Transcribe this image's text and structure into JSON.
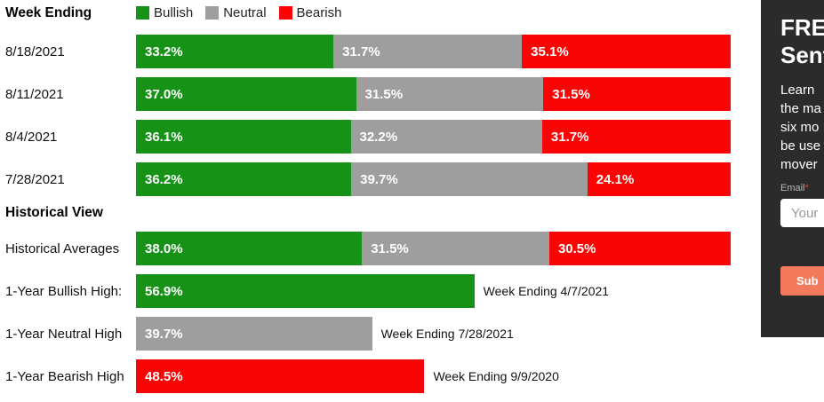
{
  "chart_data": {
    "type": "bar",
    "orientation": "horizontal-stacked",
    "xlim": [
      0,
      100
    ],
    "legend": [
      "Bullish",
      "Neutral",
      "Bearish"
    ],
    "legend_position": "top",
    "colors": {
      "Bullish": "#169216",
      "Neutral": "#9e9e9e",
      "Bearish": "#fa0505"
    },
    "weekly": {
      "section_title": "Week Ending",
      "categories": [
        "8/18/2021",
        "8/11/2021",
        "8/4/2021",
        "7/28/2021"
      ],
      "series": [
        {
          "name": "Bullish",
          "values": [
            33.2,
            37.0,
            36.1,
            36.2
          ]
        },
        {
          "name": "Neutral",
          "values": [
            31.7,
            31.5,
            32.2,
            39.7
          ]
        },
        {
          "name": "Bearish",
          "values": [
            35.1,
            31.5,
            31.7,
            24.1
          ]
        }
      ]
    },
    "historical": {
      "section_title": "Historical View",
      "rows": [
        {
          "label": "Historical Averages",
          "segments": [
            {
              "name": "Bullish",
              "value": 38.0
            },
            {
              "name": "Neutral",
              "value": 31.5
            },
            {
              "name": "Bearish",
              "value": 30.5
            }
          ],
          "annotation": ""
        },
        {
          "label": "1-Year Bullish High:",
          "segments": [
            {
              "name": "Bullish",
              "value": 56.9
            }
          ],
          "annotation": "Week Ending 4/7/2021"
        },
        {
          "label": "1-Year Neutral High",
          "segments": [
            {
              "name": "Neutral",
              "value": 39.7
            }
          ],
          "annotation": "Week Ending 7/28/2021"
        },
        {
          "label": "1-Year Bearish High",
          "segments": [
            {
              "name": "Bearish",
              "value": 48.5
            }
          ],
          "annotation": "Week Ending 9/9/2020"
        }
      ]
    }
  },
  "signup_panel": {
    "background": "#2b2b2b",
    "button_color": "#f47a5e",
    "title_lines": [
      "FRE",
      "Sent"
    ],
    "body_lines": [
      "Learn",
      "the ma",
      "six mo",
      "be use",
      "mover"
    ],
    "email_label": "Email",
    "required_mark": "*",
    "input_placeholder": "Your",
    "submit_label": "Sub"
  }
}
